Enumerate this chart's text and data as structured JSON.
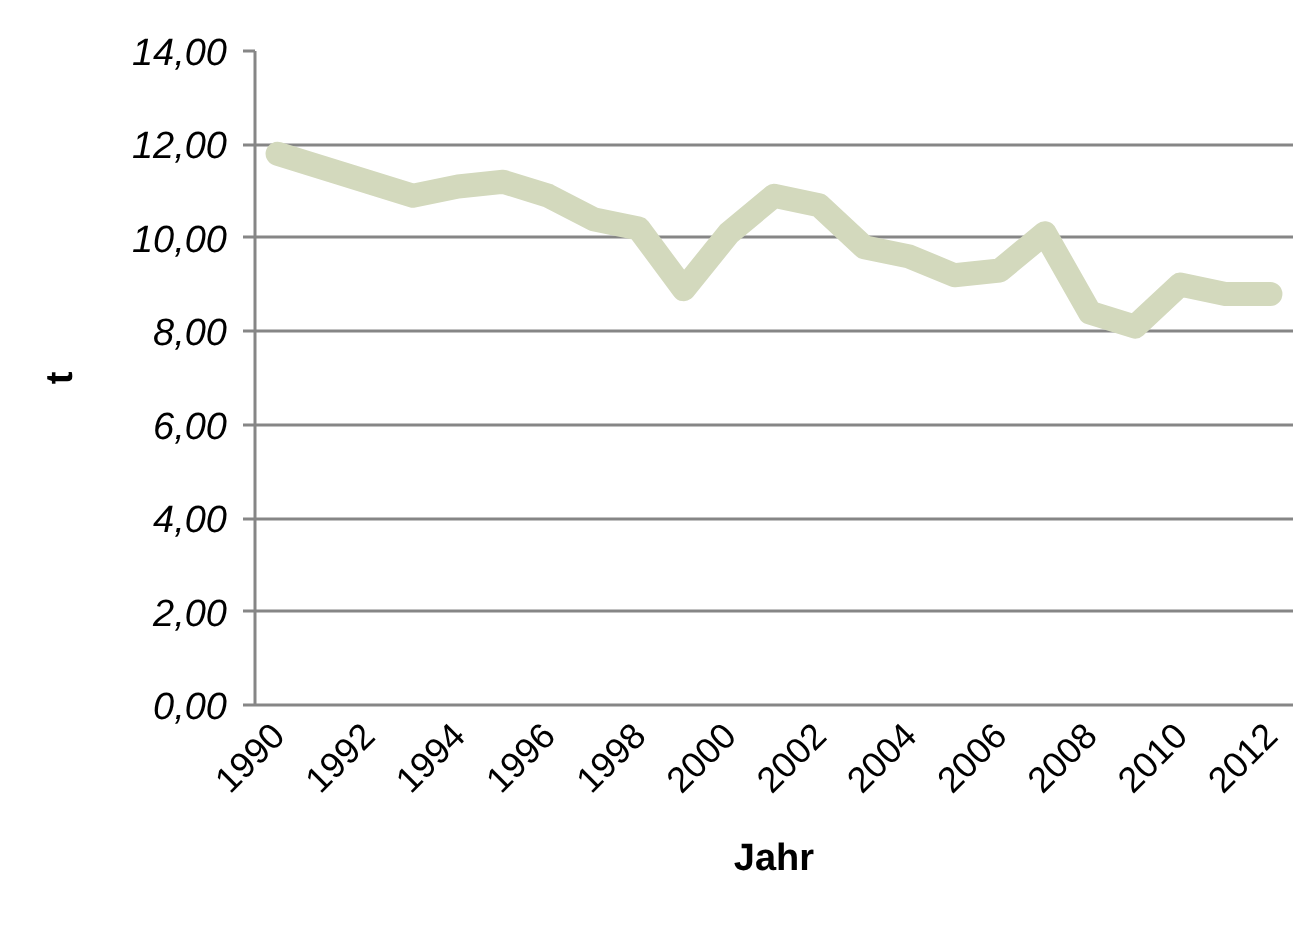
{
  "chart_data": {
    "type": "line",
    "xlabel": "Jahr",
    "ylabel": "t",
    "categories": [
      "1990",
      null,
      "1992",
      null,
      "1994",
      null,
      "1996",
      null,
      "1998",
      null,
      "2000",
      null,
      "2002",
      null,
      "2004",
      null,
      "2006",
      null,
      "2008",
      null,
      "2010",
      null,
      "2012"
    ],
    "series": [
      {
        "color": "#d3d9bd",
        "values": [
          11.8,
          11.5,
          11.2,
          10.9,
          11.1,
          11.2,
          10.9,
          10.4,
          10.2,
          8.9,
          10.1,
          10.9,
          10.7,
          9.8,
          9.6,
          9.2,
          9.3,
          10.1,
          8.4,
          8.1,
          9.0,
          8.8,
          8.8
        ]
      }
    ],
    "ylim": [
      0,
      14
    ],
    "yticks": [
      {
        "value": 0,
        "label": "0,00"
      },
      {
        "value": 2,
        "label": "2,00"
      },
      {
        "value": 4,
        "label": "4,00"
      },
      {
        "value": 6,
        "label": "6,00"
      },
      {
        "value": 8,
        "label": "8,00"
      },
      {
        "value": 10,
        "label": "10,00"
      },
      {
        "value": 12,
        "label": "12,00"
      },
      {
        "value": 14,
        "label": "14,00"
      }
    ],
    "grid": "y"
  }
}
